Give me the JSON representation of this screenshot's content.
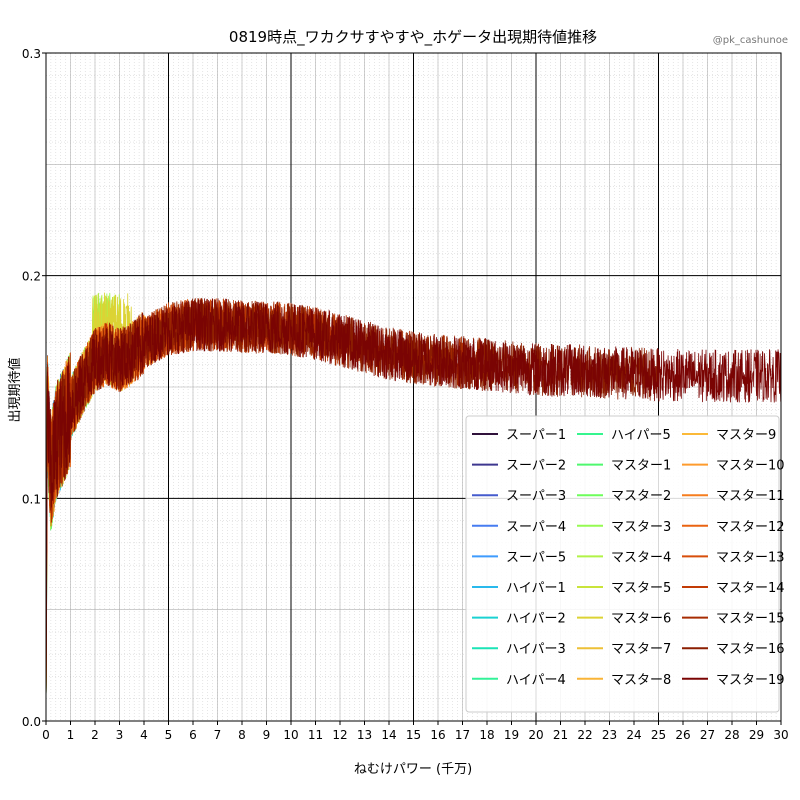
{
  "chart_data": {
    "type": "line",
    "title": "0819時点_ワカクサすやすや_ホゲータ出現期待値推移",
    "credit": "@pk_cashunoe",
    "xlabel": "ねむけパワー (千万)",
    "ylabel": "出現期待値",
    "xlim": [
      0,
      30
    ],
    "ylim": [
      0,
      0.3
    ],
    "x_ticks": [
      "0",
      "1",
      "2",
      "3",
      "4",
      "5",
      "6",
      "7",
      "8",
      "9",
      "10",
      "11",
      "12",
      "13",
      "14",
      "15",
      "16",
      "17",
      "18",
      "19",
      "20",
      "21",
      "22",
      "23",
      "24",
      "25",
      "26",
      "27",
      "28",
      "29",
      "30"
    ],
    "y_ticks": [
      "0.0",
      "0.1",
      "0.2",
      "0.3"
    ],
    "grid": true,
    "legend_position": "lower-right",
    "series": [
      {
        "name": "スーパー1",
        "color": "#30123b",
        "x_range": [
          0,
          0.4
        ]
      },
      {
        "name": "スーパー2",
        "color": "#3e378f",
        "x_range": [
          0,
          0.5
        ]
      },
      {
        "name": "スーパー3",
        "color": "#455bcd",
        "x_range": [
          0,
          0.6
        ]
      },
      {
        "name": "スーパー4",
        "color": "#467cf1",
        "x_range": [
          0,
          0.8
        ]
      },
      {
        "name": "スーパー5",
        "color": "#3e9bfe",
        "x_range": [
          0,
          1.0
        ]
      },
      {
        "name": "ハイパー1",
        "color": "#29b9ec",
        "x_range": [
          0,
          1.1
        ]
      },
      {
        "name": "ハイパー2",
        "color": "#1ad2d2",
        "x_range": [
          0,
          1.3
        ]
      },
      {
        "name": "ハイパー3",
        "color": "#1ae4b6",
        "x_range": [
          0,
          1.5
        ]
      },
      {
        "name": "ハイパー4",
        "color": "#32f298",
        "x_range": [
          0,
          1.7
        ]
      },
      {
        "name": "ハイパー5",
        "color": "#35f58e",
        "x_range": [
          0,
          1.8
        ]
      },
      {
        "name": "マスター1",
        "color": "#4ef86e",
        "x_range": [
          0,
          2.0
        ]
      },
      {
        "name": "マスター2",
        "color": "#6dfe5a",
        "x_range": [
          0,
          2.3
        ]
      },
      {
        "name": "マスター3",
        "color": "#95fb51",
        "x_range": [
          0,
          2.7
        ]
      },
      {
        "name": "マスター4",
        "color": "#b1f346",
        "x_range": [
          0,
          3.0
        ]
      },
      {
        "name": "マスター5",
        "color": "#c9e43a",
        "x_range": [
          0,
          3.3
        ]
      },
      {
        "name": "マスター6",
        "color": "#dcd334",
        "x_range": [
          0,
          3.5
        ]
      },
      {
        "name": "マスター7",
        "color": "#edc036",
        "x_range": [
          0,
          3.8
        ]
      },
      {
        "name": "マスター8",
        "color": "#f9b436",
        "x_range": [
          0,
          4.0
        ]
      },
      {
        "name": "マスター9",
        "color": "#fbb938",
        "x_range": [
          0,
          4.3
        ]
      },
      {
        "name": "マスター10",
        "color": "#fe9b2d",
        "x_range": [
          0,
          4.6
        ]
      },
      {
        "name": "マスター11",
        "color": "#f67d1e",
        "x_range": [
          0,
          5.0
        ]
      },
      {
        "name": "マスター12",
        "color": "#ea6311",
        "x_range": [
          0,
          6.0
        ]
      },
      {
        "name": "マスター13",
        "color": "#d84e0a",
        "x_range": [
          0,
          8.0
        ]
      },
      {
        "name": "マスター14",
        "color": "#c23b05",
        "x_range": [
          0,
          12.0
        ]
      },
      {
        "name": "マスター15",
        "color": "#a72c02",
        "x_range": [
          0,
          18.0
        ]
      },
      {
        "name": "マスター16",
        "color": "#8b1e01",
        "x_range": [
          0,
          25.0
        ]
      },
      {
        "name": "マスター19",
        "color": "#7a0403",
        "x_range": [
          0,
          30.0
        ]
      }
    ],
    "trend": [
      [
        0.0,
        0.0
      ],
      [
        0.05,
        0.14
      ],
      [
        0.2,
        0.11
      ],
      [
        0.4,
        0.125
      ],
      [
        0.6,
        0.13
      ],
      [
        0.8,
        0.135
      ],
      [
        1.0,
        0.14
      ],
      [
        1.5,
        0.152
      ],
      [
        2.0,
        0.162
      ],
      [
        2.5,
        0.165
      ],
      [
        3.0,
        0.162
      ],
      [
        3.5,
        0.165
      ],
      [
        4.0,
        0.17
      ],
      [
        5.0,
        0.176
      ],
      [
        6.0,
        0.178
      ],
      [
        7.0,
        0.178
      ],
      [
        8.0,
        0.177
      ],
      [
        9.0,
        0.177
      ],
      [
        10.0,
        0.176
      ],
      [
        11.0,
        0.174
      ],
      [
        12.0,
        0.171
      ],
      [
        13.0,
        0.168
      ],
      [
        14.0,
        0.165
      ],
      [
        15.0,
        0.163
      ],
      [
        16.0,
        0.162
      ],
      [
        17.0,
        0.161
      ],
      [
        18.0,
        0.16
      ],
      [
        19.0,
        0.159
      ],
      [
        20.0,
        0.158
      ],
      [
        22.0,
        0.157
      ],
      [
        24.0,
        0.156
      ],
      [
        26.0,
        0.155
      ],
      [
        28.0,
        0.155
      ],
      [
        30.0,
        0.155
      ]
    ],
    "noise_amplitude": 0.012,
    "early_bump": {
      "x_range": [
        1.9,
        3.6
      ],
      "y_center": 0.178,
      "colors": [
        "#6dfe5a",
        "#95fb51",
        "#b1f346",
        "#dcd334"
      ]
    }
  }
}
